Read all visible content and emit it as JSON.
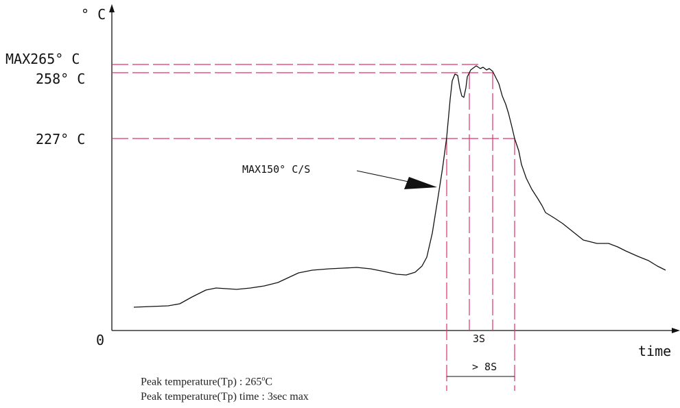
{
  "chart_data": {
    "type": "line",
    "y_unit_label": "° C",
    "x_unit_label": "time",
    "origin_label": "0",
    "y_reference_labels": [
      "MAX265° C",
      "258° C",
      "227° C"
    ],
    "y_reference_values": [
      265,
      258,
      227
    ],
    "ramp_annotation": "MAX150° C/S",
    "duration_labels": [
      "3S",
      "> 8S"
    ],
    "grid": false,
    "colors": {
      "curve": "#111111",
      "reference_lines": "#e0306a"
    }
  },
  "notes": {
    "line1_prefix": "Peak temperature(Tp) : 265",
    "line1_degree": "o",
    "line1_suffix": "C",
    "line2": "Peak temperature(Tp) time : 3sec max"
  }
}
